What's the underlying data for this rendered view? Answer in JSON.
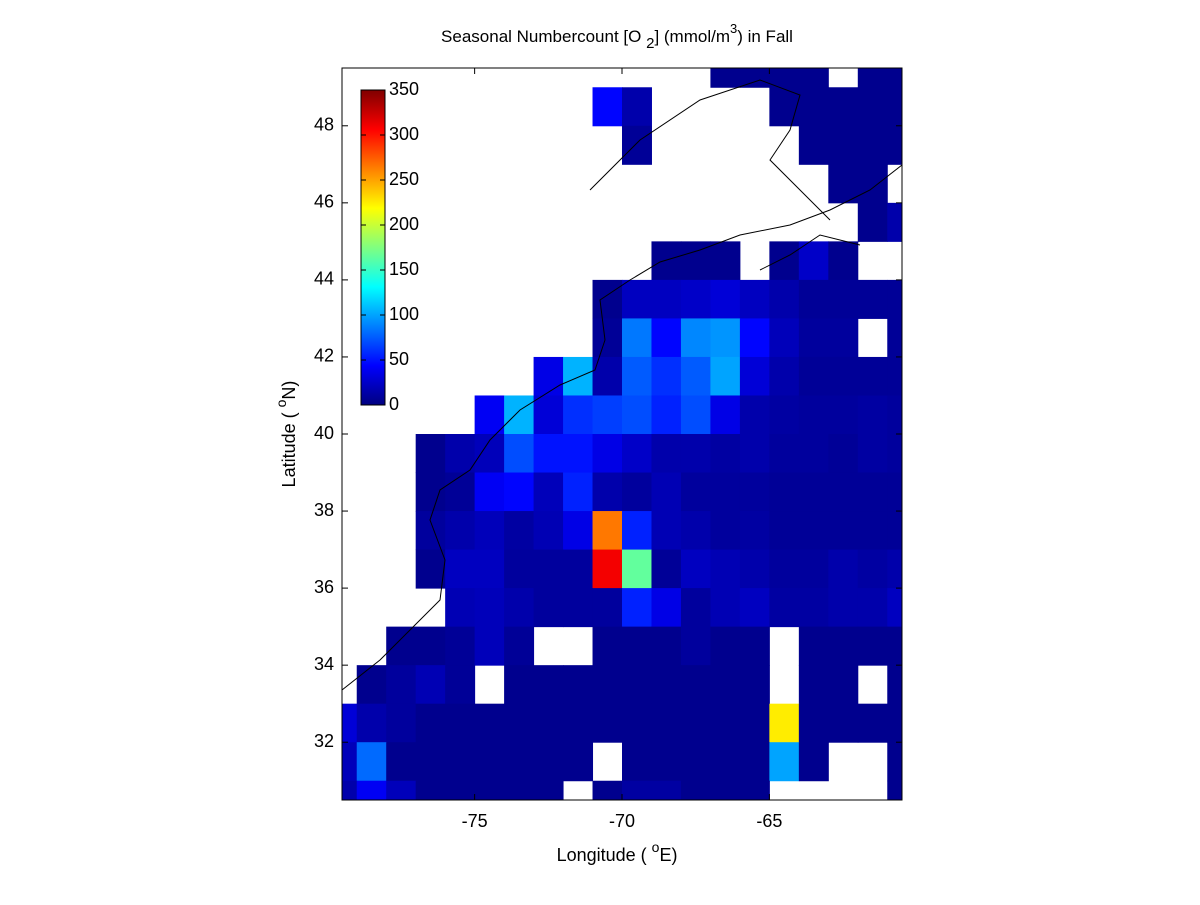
{
  "chart_data": {
    "type": "heatmap",
    "title_parts": [
      "Seasonal Numbercount [O ",
      "2",
      "] (mmol/m",
      "3",
      ") in  Fall"
    ],
    "xlabel_parts": [
      "Longitude ( ",
      "o",
      "E)"
    ],
    "ylabel_parts": [
      "Latitude ( ",
      "o",
      "N)"
    ],
    "colormap": "jet",
    "clim": [
      0,
      350
    ],
    "cticks": [
      0,
      50,
      100,
      150,
      200,
      250,
      300,
      350
    ],
    "xlim": [
      -79.5,
      -60.5
    ],
    "ylim": [
      30.5,
      49.5
    ],
    "xticks": [
      -75,
      -70,
      -65
    ],
    "yticks": [
      32,
      34,
      36,
      38,
      40,
      42,
      44,
      46,
      48
    ],
    "x": [
      -79.5,
      -78.5,
      -77.5,
      -76.5,
      -75.5,
      -74.5,
      -73.5,
      -72.5,
      -71.5,
      -70.5,
      -69.5,
      -68.5,
      -67.5,
      -66.5,
      -65.5,
      -64.5,
      -63.5,
      -62.5,
      -61.5,
      -60.5
    ],
    "y": [
      49.5,
      48.5,
      47.5,
      46.5,
      45.5,
      44.5,
      43.5,
      42.5,
      41.5,
      40.5,
      39.5,
      38.5,
      37.5,
      36.5,
      35.5,
      34.5,
      33.5,
      32.5,
      31.5,
      30.5
    ],
    "z": [
      [
        null,
        null,
        null,
        null,
        null,
        null,
        null,
        null,
        null,
        null,
        null,
        null,
        null,
        5,
        5,
        5,
        5,
        null,
        5,
        5
      ],
      [
        null,
        null,
        null,
        null,
        null,
        null,
        null,
        null,
        null,
        45,
        15,
        null,
        null,
        null,
        null,
        5,
        5,
        5,
        5,
        5
      ],
      [
        null,
        null,
        null,
        null,
        null,
        null,
        null,
        null,
        null,
        null,
        8,
        null,
        null,
        null,
        null,
        null,
        5,
        5,
        5,
        5
      ],
      [
        null,
        null,
        null,
        null,
        null,
        null,
        null,
        null,
        null,
        null,
        null,
        null,
        null,
        null,
        null,
        null,
        null,
        5,
        5,
        null
      ],
      [
        null,
        null,
        null,
        null,
        null,
        null,
        null,
        null,
        null,
        null,
        null,
        null,
        null,
        null,
        null,
        null,
        null,
        null,
        5,
        15
      ],
      [
        null,
        null,
        null,
        null,
        null,
        null,
        null,
        null,
        null,
        null,
        null,
        5,
        5,
        5,
        null,
        5,
        25,
        5,
        null,
        null
      ],
      [
        null,
        null,
        null,
        null,
        null,
        null,
        null,
        null,
        null,
        5,
        22,
        22,
        25,
        30,
        22,
        15,
        8,
        8,
        8,
        8
      ],
      [
        null,
        null,
        null,
        null,
        null,
        null,
        null,
        null,
        null,
        8,
        85,
        45,
        90,
        95,
        45,
        20,
        10,
        10,
        null,
        8
      ],
      [
        null,
        null,
        null,
        null,
        null,
        null,
        null,
        35,
        105,
        15,
        75,
        60,
        75,
        100,
        30,
        15,
        8,
        8,
        8,
        8
      ],
      [
        null,
        null,
        null,
        null,
        null,
        40,
        105,
        30,
        60,
        65,
        70,
        55,
        70,
        35,
        15,
        12,
        10,
        10,
        12,
        10
      ],
      [
        null,
        null,
        null,
        5,
        15,
        20,
        70,
        50,
        50,
        35,
        25,
        15,
        15,
        12,
        15,
        10,
        10,
        8,
        12,
        10
      ],
      [
        null,
        null,
        null,
        5,
        8,
        40,
        45,
        20,
        55,
        15,
        10,
        18,
        10,
        10,
        10,
        8,
        8,
        8,
        8,
        8
      ],
      [
        null,
        null,
        null,
        10,
        15,
        20,
        12,
        18,
        35,
        265,
        55,
        18,
        15,
        10,
        12,
        8,
        8,
        8,
        8,
        8
      ],
      [
        null,
        null,
        null,
        5,
        22,
        22,
        10,
        10,
        10,
        310,
        165,
        8,
        22,
        18,
        15,
        10,
        10,
        15,
        12,
        15
      ],
      [
        null,
        null,
        null,
        null,
        18,
        20,
        15,
        10,
        10,
        10,
        55,
        35,
        10,
        18,
        22,
        12,
        12,
        15,
        15,
        22
      ],
      [
        null,
        null,
        5,
        5,
        8,
        20,
        8,
        null,
        null,
        5,
        5,
        5,
        10,
        5,
        5,
        null,
        5,
        5,
        5,
        5
      ],
      [
        null,
        5,
        10,
        18,
        8,
        null,
        5,
        5,
        5,
        5,
        5,
        5,
        5,
        5,
        5,
        null,
        5,
        5,
        null,
        5
      ],
      [
        30,
        15,
        10,
        5,
        5,
        5,
        5,
        5,
        5,
        5,
        5,
        5,
        5,
        5,
        5,
        225,
        5,
        5,
        5,
        5
      ],
      [
        20,
        80,
        5,
        5,
        5,
        5,
        5,
        5,
        5,
        null,
        5,
        5,
        5,
        5,
        5,
        100,
        5,
        null,
        null,
        5
      ],
      [
        15,
        40,
        20,
        5,
        5,
        5,
        5,
        5,
        null,
        5,
        12,
        12,
        5,
        5,
        5,
        null,
        null,
        null,
        null,
        5
      ]
    ]
  }
}
